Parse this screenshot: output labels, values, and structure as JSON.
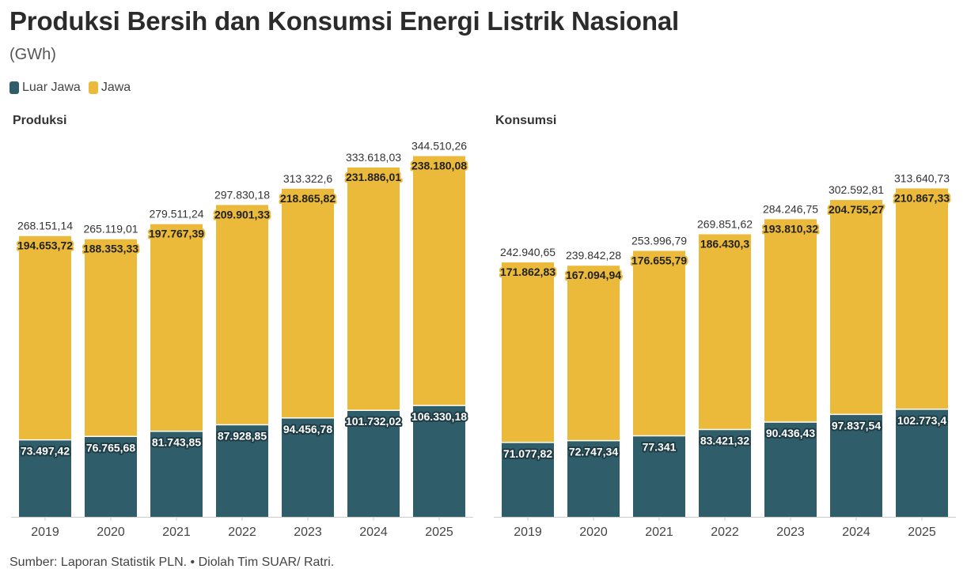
{
  "title": "Produksi Bersih dan Konsumsi Energi Listrik Nasional",
  "subtitle": "(GWh)",
  "legend": [
    {
      "label": "Luar Jawa",
      "color": "#2f5d69"
    },
    {
      "label": "Jawa",
      "color": "#ebba3a"
    }
  ],
  "source": "Sumber: Laporan Statistik PLN. • Diolah Tim SUAR/ Ratri.",
  "colors": {
    "luar_jawa": "#2f5d69",
    "jawa": "#ebba3a",
    "axis": "#cccccc"
  },
  "chart_data": [
    {
      "type": "bar",
      "stacked": true,
      "title": "Produksi",
      "categories": [
        "2019",
        "2020",
        "2021",
        "2022",
        "2023",
        "2024",
        "2025"
      ],
      "series": [
        {
          "name": "Luar Jawa",
          "values": [
            73497.42,
            76765.68,
            81743.85,
            87928.85,
            94456.78,
            101732.02,
            106330.18
          ],
          "labels": [
            "73.497,42",
            "76.765,68",
            "81.743,85",
            "87.928,85",
            "94.456,78",
            "101.732,02",
            "106.330,18"
          ]
        },
        {
          "name": "Jawa",
          "values": [
            194653.72,
            188353.33,
            197767.39,
            209901.33,
            218865.82,
            231886.01,
            238180.08
          ],
          "labels": [
            "194.653,72",
            "188.353,33",
            "197.767,39",
            "209.901,33",
            "218.865,82",
            "231.886,01",
            "238.180,08"
          ]
        }
      ],
      "totals": [
        268151.14,
        265119.01,
        279511.24,
        297830.18,
        313322.6,
        333618.03,
        344510.26
      ],
      "total_labels": [
        "268.151,14",
        "265.119,01",
        "279.511,24",
        "297.830,18",
        "313.322,6",
        "333.618,03",
        "344.510,26"
      ]
    },
    {
      "type": "bar",
      "stacked": true,
      "title": "Konsumsi",
      "categories": [
        "2019",
        "2020",
        "2021",
        "2022",
        "2023",
        "2024",
        "2025"
      ],
      "series": [
        {
          "name": "Luar Jawa",
          "values": [
            71077.82,
            72747.34,
            77341,
            83421.32,
            90436.43,
            97837.54,
            102773.4
          ],
          "labels": [
            "71.077,82",
            "72.747,34",
            "77.341",
            "83.421,32",
            "90.436,43",
            "97.837,54",
            "102.773,4"
          ]
        },
        {
          "name": "Jawa",
          "values": [
            171862.83,
            167094.94,
            176655.79,
            186430.3,
            193810.32,
            204755.27,
            210867.33
          ],
          "labels": [
            "171.862,83",
            "167.094,94",
            "176.655,79",
            "186.430,3",
            "193.810,32",
            "204.755,27",
            "210.867,33"
          ]
        }
      ],
      "totals": [
        242940.65,
        239842.28,
        253996.79,
        269851.62,
        284246.75,
        302592.81,
        313640.73
      ],
      "total_labels": [
        "242.940,65",
        "239.842,28",
        "253.996,79",
        "269.851,62",
        "284.246,75",
        "302.592,81",
        "313.640,73"
      ]
    }
  ]
}
